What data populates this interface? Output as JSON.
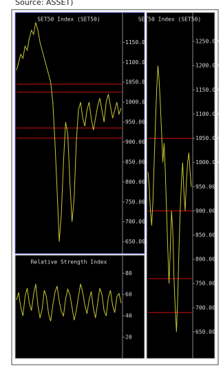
{
  "source": "Source: ASSET)",
  "chart_data": [
    {
      "type": "line",
      "title": "SET50 Index (SET50)",
      "color": "#c8c832",
      "level_color": "#d01010",
      "values": [
        1080,
        1100,
        1120,
        1110,
        1140,
        1130,
        1160,
        1180,
        1170,
        1200,
        1180,
        1150,
        1130,
        1110,
        1090,
        1070,
        1050,
        1000,
        900,
        780,
        650,
        720,
        850,
        950,
        920,
        800,
        700,
        760,
        900,
        980,
        1000,
        960,
        940,
        980,
        1000,
        960,
        930,
        960,
        990,
        1010,
        980,
        950,
        1000,
        1020,
        990,
        960,
        980,
        1000,
        970,
        985
      ],
      "levels": [
        1045,
        1025,
        935,
        910
      ],
      "ylim": [
        620,
        1225
      ],
      "yticks": [
        {
          "value": 650,
          "label": "650.00"
        },
        {
          "value": 700,
          "label": "700.00"
        },
        {
          "value": 750,
          "label": "750.00"
        },
        {
          "value": 800,
          "label": "800.00"
        },
        {
          "value": 850,
          "label": "850.00"
        },
        {
          "value": 900,
          "label": "900.00"
        },
        {
          "value": 950,
          "label": "950.00"
        },
        {
          "value": 1000,
          "label": "1000.00"
        },
        {
          "value": 1050,
          "label": "1050.00"
        },
        {
          "value": 1100,
          "label": "1100.00"
        },
        {
          "value": 1150,
          "label": "1150.00"
        }
      ]
    },
    {
      "type": "line",
      "title": "Relative Strength Index",
      "color": "#c8c832",
      "values": [
        55,
        62,
        48,
        40,
        58,
        66,
        52,
        45,
        60,
        70,
        50,
        38,
        46,
        64,
        58,
        42,
        35,
        50,
        62,
        68,
        54,
        44,
        40,
        56,
        65,
        60,
        48,
        36,
        45,
        58,
        70,
        62,
        50,
        42,
        55,
        63,
        47,
        38,
        52,
        66,
        60,
        45,
        40,
        57,
        64,
        50,
        43,
        58,
        61,
        52
      ],
      "ylim": [
        0,
        97
      ],
      "yticks": [
        20,
        40,
        60,
        80
      ]
    },
    {
      "type": "line",
      "title": "SET50 Index (SET50)",
      "color": "#c8c832",
      "level_color": "#d01010",
      "values": [
        980,
        950,
        900,
        870,
        920,
        1000,
        1080,
        1150,
        1200,
        1170,
        1120,
        1060,
        1000,
        1040,
        980,
        900,
        820,
        750,
        820,
        900,
        860,
        760,
        700,
        650,
        720,
        820,
        900,
        960,
        1000,
        940,
        900,
        960,
        1000,
        1020,
        980,
        950
      ],
      "levels": [
        1050,
        900,
        760,
        690
      ],
      "ylim": [
        595,
        1310
      ],
      "yticks": [
        {
          "value": 650,
          "label": "650.00"
        },
        {
          "value": 700,
          "label": "700.00"
        },
        {
          "value": 750,
          "label": "750.00"
        },
        {
          "value": 800,
          "label": "800.00"
        },
        {
          "value": 850,
          "label": "850.00"
        },
        {
          "value": 900,
          "label": "900.00"
        },
        {
          "value": 950,
          "label": "950.00"
        },
        {
          "value": 1000,
          "label": "1000.00"
        },
        {
          "value": 1050,
          "label": "1050.00"
        },
        {
          "value": 1100,
          "label": "1100.00"
        },
        {
          "value": 1150,
          "label": "1150.00"
        },
        {
          "value": 1200,
          "label": "1200.00"
        },
        {
          "value": 1250,
          "label": "1250.00"
        }
      ]
    }
  ]
}
